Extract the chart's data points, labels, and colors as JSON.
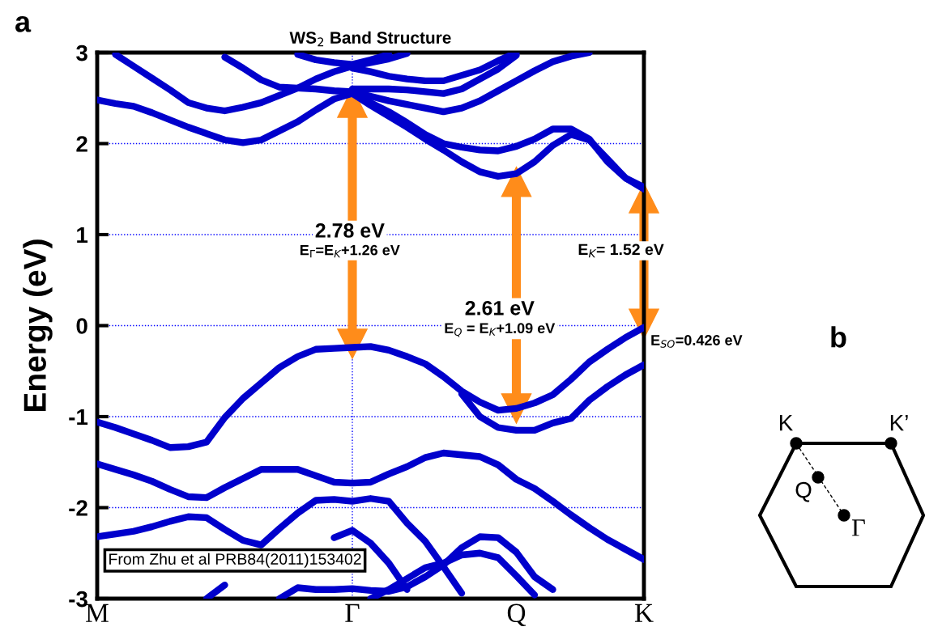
{
  "chart_data": [
    {
      "type": "line",
      "title": "WS$_{2}$ Band Structure",
      "ylabel": "Energy (eV)",
      "categories": [
        "M",
        null,
        null,
        null,
        null,
        null,
        null,
        null,
        null,
        null,
        null,
        null,
        null,
        null,
        "Γ",
        null,
        null,
        null,
        null,
        null,
        null,
        null,
        null,
        "Q",
        null,
        null,
        null,
        null,
        null,
        null,
        "K"
      ],
      "ylim": [
        -3,
        3
      ],
      "yticks": [
        -3,
        -2,
        -1,
        0,
        1,
        2,
        3
      ],
      "grid": "y",
      "legend": false,
      "ref_lines": [
        {
          "axis": "x",
          "value": "Γ",
          "color": "#0000ff",
          "line_style": "dotted"
        }
      ],
      "annotations": [
        "a",
        "From Zhu et al PRB84(2011)153402",
        "2.78 eV",
        "E$_{Γ}$=E$_{K}$+1.26 eV",
        "2.61 eV",
        "E$_{Q}$ = E$_{K}$+1.09 eV",
        "E$_{K}$= 1.52 eV",
        "E$_{SO}$=0.426 eV"
      ],
      "series": [
        {
          "color": "#0000cc",
          "values": [
            2.48,
            2.44,
            2.41,
            2.34,
            2.26,
            2.18,
            2.11,
            2.04,
            2.01,
            2.04,
            2.14,
            2.24,
            2.37,
            2.49,
            2.55,
            2.45,
            2.35,
            2.23,
            2.1,
            2.0,
            1.96,
            1.93,
            1.92,
            1.97,
            2.05,
            2.16,
            2.16,
            2.05,
            1.8,
            1.62,
            1.52
          ]
        },
        {
          "color": "#0000cc",
          "values": [
            null,
            2.98,
            2.85,
            2.72,
            2.59,
            2.45,
            2.39,
            2.36,
            2.4,
            2.45,
            2.53,
            2.61,
            2.71,
            2.79,
            2.85,
            2.89,
            2.93,
            2.99,
            null,
            null,
            null,
            null,
            null,
            null,
            null,
            null,
            null,
            null,
            null,
            null,
            null
          ]
        },
        {
          "color": "#0000cc",
          "values": [
            null,
            null,
            null,
            null,
            null,
            null,
            null,
            2.95,
            2.83,
            2.7,
            2.62,
            2.61,
            2.6,
            2.58,
            2.57,
            2.52,
            2.47,
            2.43,
            2.39,
            2.35,
            2.39,
            2.47,
            2.58,
            2.69,
            2.8,
            2.9,
            2.96,
            3.0,
            null,
            null,
            null
          ]
        },
        {
          "color": "#0000cc",
          "values": [
            null,
            null,
            null,
            null,
            null,
            null,
            null,
            null,
            null,
            null,
            null,
            2.98,
            2.92,
            2.89,
            2.87,
            2.92,
            2.98,
            null,
            null,
            null,
            null,
            null,
            null,
            null,
            null,
            null,
            null,
            null,
            null,
            null,
            null
          ]
        },
        {
          "color": "#0000cc",
          "values": [
            null,
            null,
            null,
            null,
            null,
            null,
            null,
            null,
            null,
            null,
            null,
            null,
            null,
            null,
            2.83,
            2.79,
            2.74,
            2.71,
            2.69,
            2.69,
            2.75,
            2.81,
            2.91,
            3.0,
            null,
            null,
            null,
            null,
            null,
            null,
            null
          ]
        },
        {
          "color": "#0000cc",
          "values": [
            null,
            null,
            null,
            null,
            null,
            null,
            null,
            null,
            null,
            null,
            null,
            null,
            null,
            null,
            2.6,
            2.6,
            2.6,
            2.59,
            2.57,
            2.55,
            2.6,
            2.71,
            2.82,
            2.97,
            null,
            null,
            null,
            null,
            null,
            null,
            null
          ]
        },
        {
          "color": "#0000cc",
          "values": [
            null,
            null,
            null,
            null,
            null,
            null,
            null,
            null,
            null,
            null,
            null,
            null,
            null,
            null,
            2.55,
            2.42,
            2.3,
            2.18,
            2.05,
            1.93,
            1.8,
            1.69,
            1.64,
            1.67,
            1.8,
            1.98,
            2.1,
            2.04,
            1.83,
            1.62,
            1.5
          ]
        },
        {
          "color": "#0000cc",
          "values": [
            -1.06,
            -1.12,
            -1.19,
            -1.26,
            -1.34,
            -1.33,
            -1.28,
            -1.01,
            -0.8,
            -0.63,
            -0.46,
            -0.34,
            -0.26,
            -0.25,
            -0.24,
            -0.23,
            -0.27,
            -0.34,
            -0.42,
            -0.56,
            -0.72,
            -0.84,
            -0.93,
            -0.91,
            -0.85,
            -0.76,
            -0.59,
            -0.4,
            -0.26,
            -0.13,
            -0.02
          ]
        },
        {
          "color": "#0000cc",
          "values": [
            null,
            null,
            null,
            null,
            null,
            null,
            null,
            null,
            null,
            null,
            null,
            null,
            null,
            null,
            null,
            null,
            null,
            null,
            null,
            null,
            -0.75,
            -1.0,
            -1.12,
            -1.15,
            -1.15,
            -1.07,
            -1.02,
            -0.82,
            -0.67,
            -0.54,
            -0.43
          ]
        },
        {
          "color": "#0000cc",
          "values": [
            -1.52,
            -1.58,
            -1.64,
            -1.71,
            -1.8,
            -1.88,
            -1.89,
            -1.78,
            -1.68,
            -1.58,
            -1.58,
            -1.58,
            -1.65,
            -1.72,
            -1.73,
            -1.72,
            -1.63,
            -1.55,
            -1.45,
            -1.4,
            -1.42,
            -1.44,
            -1.53,
            -1.69,
            -1.79,
            -1.93,
            -2.08,
            -2.22,
            -2.35,
            -2.46,
            -2.57
          ]
        },
        {
          "color": "#0000cc",
          "values": [
            -2.32,
            -2.29,
            -2.26,
            -2.21,
            -2.15,
            -2.1,
            -2.11,
            -2.24,
            -2.36,
            -2.41,
            -2.23,
            -2.06,
            -1.92,
            -1.91,
            -1.93,
            -1.9,
            -1.93,
            -2.17,
            -2.37,
            -2.65,
            -2.94,
            null,
            null,
            null,
            null,
            null,
            null,
            null,
            null,
            null,
            null
          ]
        },
        {
          "color": "#0000cc",
          "values": [
            null,
            null,
            null,
            null,
            null,
            null,
            null,
            null,
            null,
            null,
            null,
            null,
            null,
            -2.33,
            -2.25,
            -2.39,
            -2.61,
            -2.9,
            null,
            null,
            null,
            null,
            null,
            null,
            null,
            null,
            null,
            null,
            null,
            null,
            null
          ]
        },
        {
          "color": "#0000cc",
          "values": [
            null,
            null,
            null,
            null,
            null,
            null,
            -3.0,
            -2.85,
            null,
            null,
            null,
            null,
            null,
            null,
            null,
            null,
            null,
            null,
            null,
            null,
            null,
            null,
            null,
            null,
            null,
            null,
            null,
            null,
            null,
            null,
            null
          ]
        },
        {
          "color": "#0000cc",
          "values": [
            null,
            null,
            null,
            null,
            null,
            null,
            null,
            null,
            null,
            null,
            -3.0,
            -2.88,
            -2.9,
            -2.9,
            -2.89,
            -2.91,
            -2.92,
            -2.87,
            -2.76,
            -2.63,
            -2.44,
            -2.32,
            -2.33,
            -2.49,
            -2.76,
            -2.9,
            null,
            null,
            null,
            null,
            null
          ]
        },
        {
          "color": "#0000cc",
          "values": [
            null,
            null,
            null,
            null,
            null,
            null,
            null,
            null,
            null,
            null,
            null,
            null,
            null,
            null,
            null,
            -3.0,
            -2.9,
            -2.78,
            -2.66,
            -2.61,
            -2.52,
            -2.5,
            -2.55,
            -2.75,
            -2.96,
            null,
            null,
            null,
            null,
            null,
            null
          ]
        },
        {
          "type": "line",
          "marker": "triangle",
          "color": "#ff8c1a",
          "x": [
            "Γ",
            "Γ"
          ],
          "values": [
            -0.2,
            2.45
          ]
        },
        {
          "type": "line",
          "marker": "triangle",
          "color": "#ff8c1a",
          "x": [
            "Q",
            "Q"
          ],
          "values": [
            -0.91,
            1.58
          ]
        },
        {
          "type": "line",
          "marker": "triangle",
          "color": "#ff8c1a",
          "x": [
            "K",
            "K"
          ],
          "values": [
            0.02,
            1.4
          ]
        }
      ]
    },
    {
      "type": "other",
      "annotations": [
        "b",
        "K",
        "K’",
        "Q",
        "Γ"
      ]
    }
  ]
}
